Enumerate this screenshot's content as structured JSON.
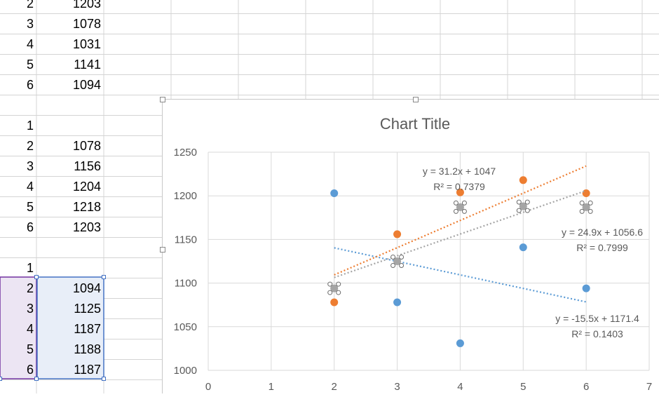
{
  "sheet": {
    "rows": [
      {
        "a": "2",
        "b": "1203"
      },
      {
        "a": "3",
        "b": "1078"
      },
      {
        "a": "4",
        "b": "1031"
      },
      {
        "a": "5",
        "b": "1141"
      },
      {
        "a": "6",
        "b": "1094"
      },
      {
        "a": "",
        "b": ""
      },
      {
        "a": "1",
        "b": ""
      },
      {
        "a": "2",
        "b": "1078"
      },
      {
        "a": "3",
        "b": "1156"
      },
      {
        "a": "4",
        "b": "1204"
      },
      {
        "a": "5",
        "b": "1218"
      },
      {
        "a": "6",
        "b": "1203"
      },
      {
        "a": "",
        "b": ""
      },
      {
        "a": "1",
        "b": ""
      },
      {
        "a": "2",
        "b": "1094"
      },
      {
        "a": "3",
        "b": "1125"
      },
      {
        "a": "4",
        "b": "1187"
      },
      {
        "a": "5",
        "b": "1188"
      },
      {
        "a": "6",
        "b": "1187"
      }
    ]
  },
  "colors": {
    "series1": "#5b9bd5",
    "series2": "#ed7d31",
    "series3": "#a5a5a5",
    "grid": "#d9d9d9",
    "range_purple": "#7030a0",
    "range_blue": "#4472c4"
  },
  "chart_data": {
    "type": "scatter",
    "title": "Chart Title",
    "xlim": [
      0,
      7
    ],
    "ylim": [
      1000,
      1250
    ],
    "xticks": [
      0,
      1,
      2,
      3,
      4,
      5,
      6,
      7
    ],
    "yticks": [
      1000,
      1050,
      1100,
      1150,
      1200,
      1250
    ],
    "grid": true,
    "series": [
      {
        "x": [
          2,
          3,
          4,
          5,
          6
        ],
        "y": [
          1203,
          1078,
          1031,
          1141,
          1094
        ],
        "trendline": {
          "slope": -15.5,
          "intercept": 1171.4,
          "eq": "y = -15.5x + 1171.4",
          "r2": "R² = 0.1403"
        }
      },
      {
        "x": [
          2,
          3,
          4,
          5,
          6
        ],
        "y": [
          1078,
          1156,
          1204,
          1218,
          1203
        ],
        "trendline": {
          "slope": 31.2,
          "intercept": 1047,
          "eq": "y = 31.2x + 1047",
          "r2": "R² = 0.7379"
        }
      },
      {
        "x": [
          2,
          3,
          4,
          5,
          6
        ],
        "y": [
          1094,
          1125,
          1187,
          1188,
          1187
        ],
        "trendline": {
          "slope": 24.9,
          "intercept": 1056.6,
          "eq": "y = 24.9x + 1056.6",
          "r2": "R² = 0.7999"
        }
      }
    ]
  }
}
